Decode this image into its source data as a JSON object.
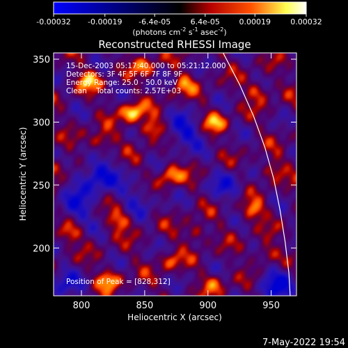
{
  "chart_data": {
    "type": "heatmap",
    "title": "Reconstructed RHESSI Image",
    "xlabel": "Heliocentric X (arcsec)",
    "ylabel": "Heliocentric Y (arcsec)",
    "xlim": [
      778,
      970
    ],
    "ylim": [
      162,
      355
    ],
    "xticks": [
      "800",
      "850",
      "900",
      "950"
    ],
    "yticks": [
      "200",
      "250",
      "300",
      "350"
    ],
    "xtick_values": [
      800,
      850,
      900,
      950
    ],
    "ytick_values": [
      200,
      250,
      300,
      350
    ],
    "colorbar": {
      "range": [
        -0.00032,
        0.00032
      ],
      "ticks": [
        "-0.00032",
        "-0.00019",
        "-6.4e-05",
        "6.4e-05",
        "0.00019",
        "0.00032"
      ],
      "tick_values": [
        -0.00032,
        -0.00019,
        -6.4e-05,
        6.4e-05,
        0.00019,
        0.00032
      ],
      "units_text": "(photons cm",
      "units_exp1": "-2",
      "units_mid": " s",
      "units_exp2": "-1",
      "units_end": " asec",
      "units_exp3": "-2",
      "units_close": ")"
    },
    "annotations": {
      "time": "15-Dec-2003 05:17:40.000 to 05:21:12.000",
      "detectors": "Detectors: 3F 4F 5F 6F 7F 8F 9F",
      "energy": "Energy Range: 25.0 - 50.0 keV",
      "clean": "Clean    Total counts: 2.57E+03",
      "peak": "Position of Peak = [828,312]"
    },
    "peak": [
      828,
      312
    ],
    "limb": [
      [
        912,
        355
      ],
      [
        925,
        330
      ],
      [
        936,
        305
      ],
      [
        945,
        280
      ],
      [
        952,
        255
      ],
      [
        957,
        230
      ],
      [
        961,
        205
      ],
      [
        964,
        180
      ],
      [
        965,
        162
      ]
    ],
    "hot_spots": [
      {
        "x": 840,
        "y": 308,
        "amp": 1.0
      },
      {
        "x": 855,
        "y": 295,
        "amp": 0.85
      },
      {
        "x": 870,
        "y": 258,
        "amp": 0.8
      },
      {
        "x": 805,
        "y": 333,
        "amp": 0.75
      },
      {
        "x": 815,
        "y": 285,
        "amp": 0.7
      },
      {
        "x": 830,
        "y": 222,
        "amp": 0.7
      },
      {
        "x": 822,
        "y": 175,
        "amp": 0.75
      },
      {
        "x": 905,
        "y": 300,
        "amp": 0.7
      },
      {
        "x": 940,
        "y": 325,
        "amp": 0.6
      },
      {
        "x": 935,
        "y": 230,
        "amp": 0.75
      },
      {
        "x": 950,
        "y": 262,
        "amp": 0.55
      },
      {
        "x": 945,
        "y": 195,
        "amp": 0.6
      },
      {
        "x": 890,
        "y": 212,
        "amp": 0.55
      },
      {
        "x": 870,
        "y": 190,
        "amp": 0.5
      },
      {
        "x": 905,
        "y": 172,
        "amp": 0.5
      },
      {
        "x": 780,
        "y": 265,
        "amp": 0.55
      },
      {
        "x": 790,
        "y": 212,
        "amp": 0.6
      },
      {
        "x": 850,
        "y": 345,
        "amp": 0.6
      },
      {
        "x": 880,
        "y": 330,
        "amp": 0.55
      }
    ],
    "cold_spots": [
      {
        "x": 812,
        "y": 258,
        "amp": 1.0
      },
      {
        "x": 880,
        "y": 292,
        "amp": 0.8
      },
      {
        "x": 795,
        "y": 232,
        "amp": 0.7
      },
      {
        "x": 955,
        "y": 172,
        "amp": 0.8
      },
      {
        "x": 915,
        "y": 250,
        "amp": 0.5
      },
      {
        "x": 785,
        "y": 170,
        "amp": 0.6
      },
      {
        "x": 845,
        "y": 240,
        "amp": 0.5
      }
    ]
  },
  "footer": {
    "timestamp": "7-May-2022 19:54"
  },
  "colors": {
    "background": "#000000",
    "text": "#ffffff",
    "limb": "#ffffff",
    "colormap": [
      "#0000ff",
      "#000000",
      "#b40000",
      "#ff5000",
      "#ffff50",
      "#ffffff"
    ]
  }
}
